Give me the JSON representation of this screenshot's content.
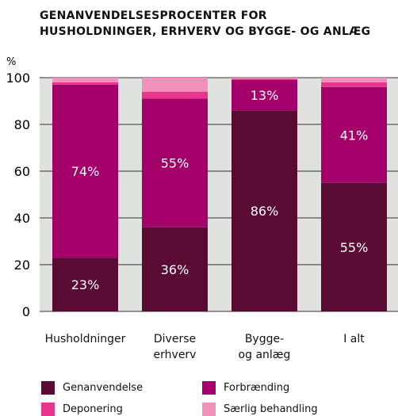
{
  "chart_data": {
    "type": "stacked_bar",
    "title": "GENANVENDELSESPROCENTER FOR\nHUSHOLDNINGER, ERHVERV OG BYGGE- OG ANLÆG",
    "y_label": "%",
    "categories": [
      "Husholdninger",
      "Diverse\nerhverv",
      "Bygge-\nog anlæg",
      "I alt"
    ],
    "series": [
      {
        "name": "Genanvendelse",
        "color": "#5a0b33",
        "values": [
          23,
          36,
          86,
          55
        ],
        "value_labels": [
          "23%",
          "36%",
          "86%",
          "55%"
        ]
      },
      {
        "name": "Forbrænding",
        "color": "#a3006a",
        "values": [
          74,
          55,
          13,
          41
        ],
        "value_labels": [
          "74%",
          "55%",
          "13%",
          "41%"
        ]
      },
      {
        "name": "Deponering",
        "color": "#e8368c",
        "values": [
          1,
          3,
          0.5,
          2
        ]
      },
      {
        "name": "Særlig behandling",
        "color": "#f190ba",
        "values": [
          2,
          6,
          0.5,
          2
        ]
      }
    ],
    "ylim": [
      0,
      100
    ],
    "yticks": [
      0,
      20,
      40,
      60,
      80,
      100
    ],
    "grid": true
  }
}
